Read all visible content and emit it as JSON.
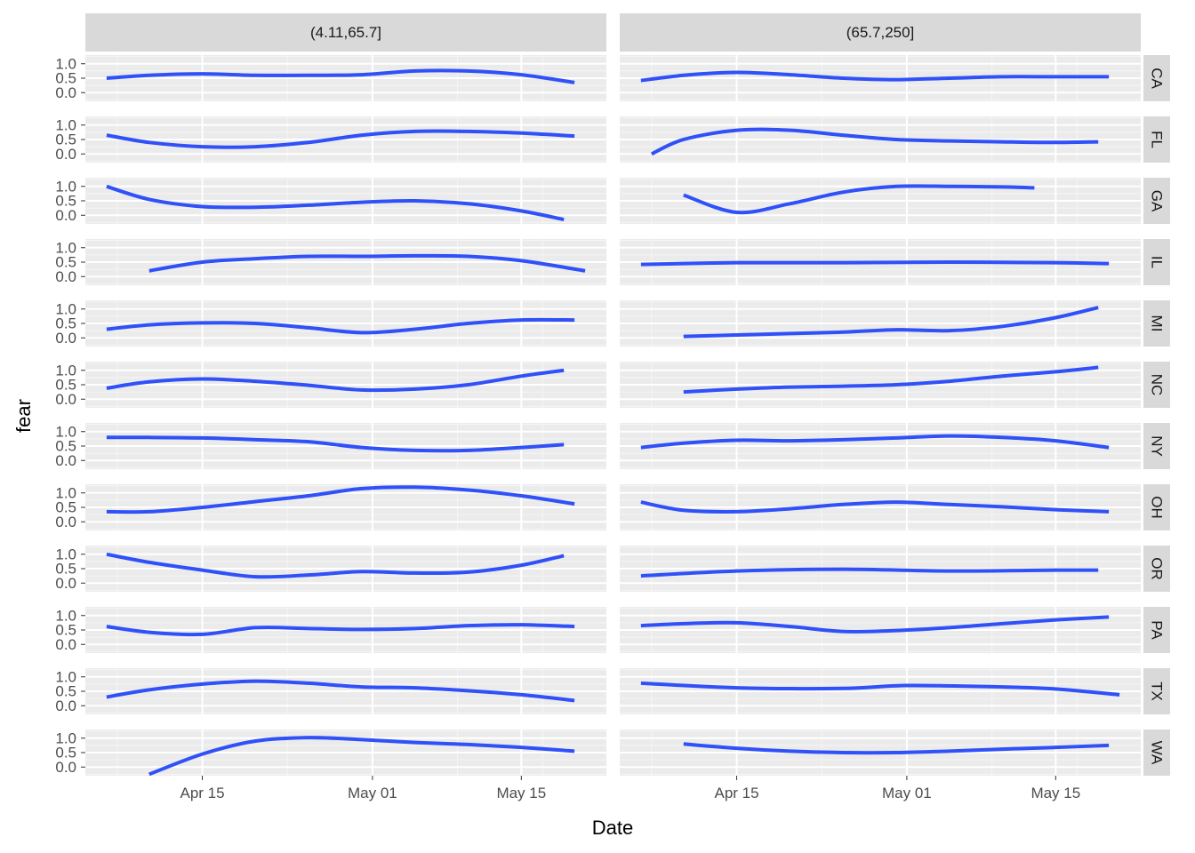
{
  "chart_data": {
    "type": "line",
    "xlabel": "Date",
    "ylabel": "fear",
    "x_ticks": [
      "Apr 15",
      "May 01",
      "May 15"
    ],
    "y_ticks": [
      "0.0",
      "0.5",
      "1.0"
    ],
    "columns": [
      "(4.11,65.7]",
      "(65.7,250]"
    ],
    "rows": [
      "CA",
      "FL",
      "GA",
      "IL",
      "MI",
      "NC",
      "NY",
      "OH",
      "OR",
      "PA",
      "TX",
      "WA"
    ],
    "xlim": [
      "2020-04-04",
      "2020-05-23"
    ],
    "ylim": [
      -0.3,
      1.3
    ],
    "grid": true,
    "line_color": "#3050F8",
    "panels": [
      {
        "row": "CA",
        "col": "(4.11,65.7]",
        "x": [
          "2020-04-06",
          "2020-04-10",
          "2020-04-15",
          "2020-04-20",
          "2020-04-25",
          "2020-04-30",
          "2020-05-05",
          "2020-05-10",
          "2020-05-15",
          "2020-05-20"
        ],
        "y": [
          0.5,
          0.6,
          0.65,
          0.6,
          0.6,
          0.62,
          0.75,
          0.75,
          0.62,
          0.35
        ]
      },
      {
        "row": "CA",
        "col": "(65.7,250]",
        "x": [
          "2020-04-06",
          "2020-04-10",
          "2020-04-15",
          "2020-04-20",
          "2020-04-25",
          "2020-04-30",
          "2020-05-05",
          "2020-05-10",
          "2020-05-15",
          "2020-05-20"
        ],
        "y": [
          0.42,
          0.6,
          0.7,
          0.62,
          0.5,
          0.45,
          0.5,
          0.55,
          0.55,
          0.55
        ]
      },
      {
        "row": "FL",
        "col": "(4.11,65.7]",
        "x": [
          "2020-04-06",
          "2020-04-10",
          "2020-04-15",
          "2020-04-20",
          "2020-04-25",
          "2020-04-30",
          "2020-05-05",
          "2020-05-10",
          "2020-05-15",
          "2020-05-20"
        ],
        "y": [
          0.65,
          0.4,
          0.25,
          0.25,
          0.4,
          0.65,
          0.78,
          0.78,
          0.72,
          0.62
        ]
      },
      {
        "row": "FL",
        "col": "(65.7,250]",
        "x": [
          "2020-04-07",
          "2020-04-10",
          "2020-04-15",
          "2020-04-20",
          "2020-04-25",
          "2020-04-30",
          "2020-05-05",
          "2020-05-10",
          "2020-05-15",
          "2020-05-19"
        ],
        "y": [
          0.0,
          0.5,
          0.82,
          0.82,
          0.65,
          0.5,
          0.45,
          0.42,
          0.4,
          0.42
        ]
      },
      {
        "row": "GA",
        "col": "(4.11,65.7]",
        "x": [
          "2020-04-06",
          "2020-04-10",
          "2020-04-15",
          "2020-04-20",
          "2020-04-25",
          "2020-04-30",
          "2020-05-05",
          "2020-05-10",
          "2020-05-15",
          "2020-05-19"
        ],
        "y": [
          1.0,
          0.55,
          0.3,
          0.28,
          0.35,
          0.45,
          0.5,
          0.4,
          0.15,
          -0.15
        ]
      },
      {
        "row": "GA",
        "col": "(65.7,250]",
        "x": [
          "2020-04-10",
          "2020-04-15",
          "2020-04-20",
          "2020-04-25",
          "2020-04-30",
          "2020-05-05",
          "2020-05-10",
          "2020-05-13"
        ],
        "y": [
          0.7,
          0.1,
          0.4,
          0.8,
          1.0,
          1.0,
          0.98,
          0.95
        ]
      },
      {
        "row": "IL",
        "col": "(4.11,65.7]",
        "x": [
          "2020-04-10",
          "2020-04-15",
          "2020-04-20",
          "2020-04-25",
          "2020-04-30",
          "2020-05-05",
          "2020-05-10",
          "2020-05-15",
          "2020-05-21"
        ],
        "y": [
          0.2,
          0.5,
          0.62,
          0.7,
          0.7,
          0.72,
          0.7,
          0.55,
          0.2
        ]
      },
      {
        "row": "IL",
        "col": "(65.7,250]",
        "x": [
          "2020-04-06",
          "2020-04-15",
          "2020-04-25",
          "2020-05-05",
          "2020-05-15",
          "2020-05-20"
        ],
        "y": [
          0.42,
          0.48,
          0.48,
          0.5,
          0.48,
          0.45
        ]
      },
      {
        "row": "MI",
        "col": "(4.11,65.7]",
        "x": [
          "2020-04-06",
          "2020-04-10",
          "2020-04-15",
          "2020-04-20",
          "2020-04-25",
          "2020-04-30",
          "2020-05-05",
          "2020-05-10",
          "2020-05-15",
          "2020-05-20"
        ],
        "y": [
          0.3,
          0.45,
          0.52,
          0.5,
          0.35,
          0.18,
          0.3,
          0.5,
          0.62,
          0.62
        ]
      },
      {
        "row": "MI",
        "col": "(65.7,250]",
        "x": [
          "2020-04-10",
          "2020-04-15",
          "2020-04-20",
          "2020-04-25",
          "2020-04-30",
          "2020-05-05",
          "2020-05-10",
          "2020-05-15",
          "2020-05-19"
        ],
        "y": [
          0.05,
          0.1,
          0.15,
          0.2,
          0.28,
          0.25,
          0.4,
          0.7,
          1.05
        ]
      },
      {
        "row": "NC",
        "col": "(4.11,65.7]",
        "x": [
          "2020-04-06",
          "2020-04-10",
          "2020-04-15",
          "2020-04-20",
          "2020-04-25",
          "2020-04-30",
          "2020-05-05",
          "2020-05-10",
          "2020-05-15",
          "2020-05-19"
        ],
        "y": [
          0.38,
          0.6,
          0.7,
          0.62,
          0.48,
          0.32,
          0.35,
          0.5,
          0.8,
          1.0
        ]
      },
      {
        "row": "NC",
        "col": "(65.7,250]",
        "x": [
          "2020-04-10",
          "2020-04-15",
          "2020-04-20",
          "2020-04-25",
          "2020-04-30",
          "2020-05-05",
          "2020-05-10",
          "2020-05-15",
          "2020-05-19"
        ],
        "y": [
          0.25,
          0.35,
          0.42,
          0.45,
          0.5,
          0.62,
          0.8,
          0.95,
          1.1
        ]
      },
      {
        "row": "NY",
        "col": "(4.11,65.7]",
        "x": [
          "2020-04-06",
          "2020-04-10",
          "2020-04-15",
          "2020-04-20",
          "2020-04-25",
          "2020-04-30",
          "2020-05-05",
          "2020-05-10",
          "2020-05-15",
          "2020-05-19"
        ],
        "y": [
          0.8,
          0.8,
          0.78,
          0.72,
          0.65,
          0.45,
          0.35,
          0.35,
          0.45,
          0.55
        ]
      },
      {
        "row": "NY",
        "col": "(65.7,250]",
        "x": [
          "2020-04-06",
          "2020-04-10",
          "2020-04-15",
          "2020-04-20",
          "2020-04-25",
          "2020-04-30",
          "2020-05-05",
          "2020-05-10",
          "2020-05-15",
          "2020-05-20"
        ],
        "y": [
          0.45,
          0.6,
          0.7,
          0.68,
          0.72,
          0.78,
          0.85,
          0.8,
          0.68,
          0.45
        ]
      },
      {
        "row": "OH",
        "col": "(4.11,65.7]",
        "x": [
          "2020-04-06",
          "2020-04-10",
          "2020-04-15",
          "2020-04-20",
          "2020-04-25",
          "2020-04-30",
          "2020-05-05",
          "2020-05-10",
          "2020-05-15",
          "2020-05-20"
        ],
        "y": [
          0.35,
          0.35,
          0.5,
          0.7,
          0.9,
          1.15,
          1.2,
          1.1,
          0.9,
          0.62
        ]
      },
      {
        "row": "OH",
        "col": "(65.7,250]",
        "x": [
          "2020-04-06",
          "2020-04-10",
          "2020-04-15",
          "2020-04-20",
          "2020-04-25",
          "2020-04-30",
          "2020-05-05",
          "2020-05-10",
          "2020-05-15",
          "2020-05-20"
        ],
        "y": [
          0.68,
          0.4,
          0.35,
          0.45,
          0.6,
          0.68,
          0.6,
          0.52,
          0.42,
          0.35
        ]
      },
      {
        "row": "OR",
        "col": "(4.11,65.7]",
        "x": [
          "2020-04-06",
          "2020-04-10",
          "2020-04-15",
          "2020-04-20",
          "2020-04-25",
          "2020-04-30",
          "2020-05-05",
          "2020-05-10",
          "2020-05-15",
          "2020-05-19"
        ],
        "y": [
          1.0,
          0.72,
          0.45,
          0.22,
          0.28,
          0.4,
          0.35,
          0.38,
          0.62,
          0.95
        ]
      },
      {
        "row": "OR",
        "col": "(65.7,250]",
        "x": [
          "2020-04-06",
          "2020-04-15",
          "2020-04-25",
          "2020-05-05",
          "2020-05-15",
          "2020-05-19"
        ],
        "y": [
          0.25,
          0.42,
          0.48,
          0.42,
          0.45,
          0.45
        ]
      },
      {
        "row": "PA",
        "col": "(4.11,65.7]",
        "x": [
          "2020-04-06",
          "2020-04-10",
          "2020-04-15",
          "2020-04-20",
          "2020-04-25",
          "2020-04-30",
          "2020-05-05",
          "2020-05-10",
          "2020-05-15",
          "2020-05-20"
        ],
        "y": [
          0.62,
          0.42,
          0.35,
          0.58,
          0.55,
          0.52,
          0.55,
          0.65,
          0.68,
          0.62
        ]
      },
      {
        "row": "PA",
        "col": "(65.7,250]",
        "x": [
          "2020-04-06",
          "2020-04-10",
          "2020-04-15",
          "2020-04-20",
          "2020-04-25",
          "2020-04-30",
          "2020-05-05",
          "2020-05-10",
          "2020-05-15",
          "2020-05-20"
        ],
        "y": [
          0.65,
          0.72,
          0.75,
          0.62,
          0.45,
          0.48,
          0.58,
          0.72,
          0.85,
          0.95
        ]
      },
      {
        "row": "TX",
        "col": "(4.11,65.7]",
        "x": [
          "2020-04-06",
          "2020-04-10",
          "2020-04-15",
          "2020-04-20",
          "2020-04-25",
          "2020-04-30",
          "2020-05-05",
          "2020-05-10",
          "2020-05-15",
          "2020-05-20"
        ],
        "y": [
          0.3,
          0.55,
          0.75,
          0.85,
          0.78,
          0.65,
          0.62,
          0.52,
          0.38,
          0.18
        ]
      },
      {
        "row": "TX",
        "col": "(65.7,250]",
        "x": [
          "2020-04-06",
          "2020-04-15",
          "2020-04-25",
          "2020-05-01",
          "2020-05-10",
          "2020-05-15",
          "2020-05-21"
        ],
        "y": [
          0.78,
          0.62,
          0.6,
          0.7,
          0.65,
          0.58,
          0.38
        ]
      },
      {
        "row": "WA",
        "col": "(4.11,65.7]",
        "x": [
          "2020-04-10",
          "2020-04-15",
          "2020-04-20",
          "2020-04-25",
          "2020-04-30",
          "2020-05-05",
          "2020-05-10",
          "2020-05-15",
          "2020-05-20"
        ],
        "y": [
          -0.25,
          0.45,
          0.9,
          1.02,
          0.95,
          0.85,
          0.78,
          0.68,
          0.55
        ]
      },
      {
        "row": "WA",
        "col": "(65.7,250]",
        "x": [
          "2020-04-10",
          "2020-04-15",
          "2020-04-20",
          "2020-04-25",
          "2020-04-30",
          "2020-05-05",
          "2020-05-10",
          "2020-05-15",
          "2020-05-20"
        ],
        "y": [
          0.8,
          0.65,
          0.55,
          0.5,
          0.5,
          0.55,
          0.62,
          0.68,
          0.75
        ]
      }
    ]
  }
}
